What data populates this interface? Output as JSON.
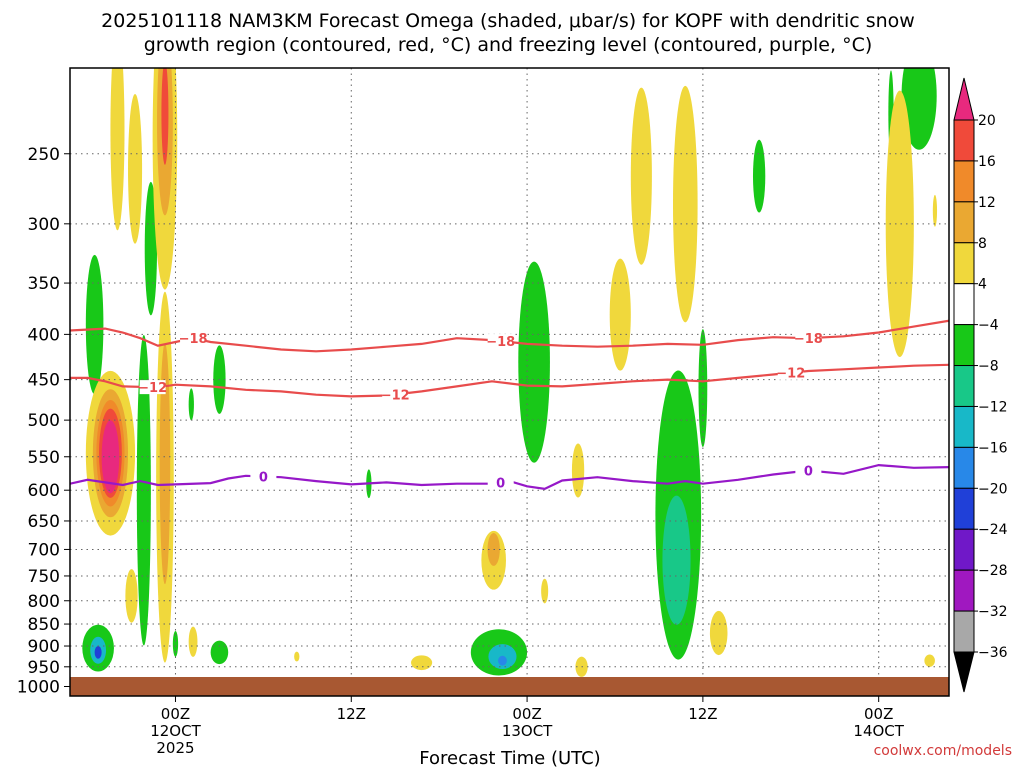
{
  "chart_data": {
    "type": "heatmap",
    "title_line1": "2025101118 NAM3KM Forecast Omega (shaded, μbar/s) for KOPF with dendritic snow",
    "title_line2": "growth region (contoured, red, °C) and freezing level (contoured, purple, °C)",
    "xlabel": "Forecast Time (UTC)",
    "credit": "coolwx.com/models",
    "y_axis": {
      "unit": "hPa",
      "range": [
        1025,
        200
      ],
      "ticks": [
        250,
        300,
        350,
        400,
        450,
        500,
        550,
        600,
        650,
        700,
        750,
        800,
        850,
        900,
        950,
        1000
      ]
    },
    "x_axis": {
      "unit": "forecast hour",
      "range": [
        -6,
        44
      ],
      "ticks": [
        {
          "hour": 0,
          "label": "00Z",
          "sub": "12OCT",
          "sub2": "2025"
        },
        {
          "hour": 10,
          "label": "12Z",
          "sub": "",
          "sub2": ""
        },
        {
          "hour": 20,
          "label": "00Z",
          "sub": "13OCT",
          "sub2": ""
        },
        {
          "hour": 30,
          "label": "12Z",
          "sub": "",
          "sub2": ""
        },
        {
          "hour": 40,
          "label": "00Z",
          "sub": "14OCT",
          "sub2": ""
        }
      ]
    },
    "colorbar": {
      "levels": [
        "20",
        "16",
        "12",
        "8",
        "4",
        "−4",
        "−8",
        "−12",
        "−16",
        "−20",
        "−24",
        "−28",
        "−32",
        "−36"
      ],
      "colors": [
        "#e8297e",
        "#f04a3a",
        "#f08a2a",
        "#eaa832",
        "#f0d83c",
        "#ffffff",
        "#18c818",
        "#18c888",
        "#18b8c8",
        "#2888e8",
        "#2040d8",
        "#7018c8",
        "#a018c0",
        "#a8a8a8"
      ]
    },
    "contours": [
      {
        "name": "dgz-minus18",
        "label": "−18",
        "color": "#e84c4c",
        "points": [
          [
            -6,
            396
          ],
          [
            -4,
            394
          ],
          [
            -3,
            398
          ],
          [
            -2,
            404
          ],
          [
            -1,
            412
          ],
          [
            0,
            408
          ],
          [
            1,
            404
          ],
          [
            2,
            408
          ],
          [
            4,
            412
          ],
          [
            6,
            416
          ],
          [
            8,
            418
          ],
          [
            10,
            416
          ],
          [
            12,
            413
          ],
          [
            14,
            410
          ],
          [
            16,
            404
          ],
          [
            18,
            406
          ],
          [
            20,
            410
          ],
          [
            22,
            412
          ],
          [
            24,
            413
          ],
          [
            26,
            412
          ],
          [
            28,
            410
          ],
          [
            30,
            411
          ],
          [
            32,
            406
          ],
          [
            34,
            403
          ],
          [
            36,
            404
          ],
          [
            38,
            402
          ],
          [
            40,
            398
          ],
          [
            42,
            392
          ],
          [
            44,
            386
          ]
        ],
        "label_positions": [
          1,
          18.5,
          36
        ]
      },
      {
        "name": "dgz-minus12",
        "label": "−12",
        "color": "#e84c4c",
        "points": [
          [
            -6,
            448
          ],
          [
            -5,
            448
          ],
          [
            -4,
            452
          ],
          [
            -3,
            458
          ],
          [
            -1,
            459
          ],
          [
            0,
            456
          ],
          [
            2,
            458
          ],
          [
            4,
            462
          ],
          [
            6,
            464
          ],
          [
            8,
            468
          ],
          [
            10,
            470
          ],
          [
            12,
            469
          ],
          [
            14,
            464
          ],
          [
            16,
            458
          ],
          [
            18,
            452
          ],
          [
            20,
            457
          ],
          [
            22,
            458
          ],
          [
            24,
            455
          ],
          [
            26,
            452
          ],
          [
            28,
            450
          ],
          [
            30,
            452
          ],
          [
            32,
            448
          ],
          [
            34,
            444
          ],
          [
            36,
            440
          ],
          [
            38,
            438
          ],
          [
            40,
            436
          ],
          [
            42,
            434
          ],
          [
            44,
            433
          ]
        ],
        "label_positions": [
          -1.3,
          12.5,
          35
        ]
      },
      {
        "name": "freezing-level",
        "label": "0",
        "color": "#9618c8",
        "points": [
          [
            -6,
            590
          ],
          [
            -5,
            584
          ],
          [
            -4,
            588
          ],
          [
            -3,
            592
          ],
          [
            -2,
            586
          ],
          [
            -1,
            592
          ],
          [
            0,
            591
          ],
          [
            2,
            589
          ],
          [
            3,
            582
          ],
          [
            4,
            578
          ],
          [
            6,
            580
          ],
          [
            8,
            586
          ],
          [
            10,
            591
          ],
          [
            12,
            588
          ],
          [
            14,
            592
          ],
          [
            16,
            590
          ],
          [
            18,
            590
          ],
          [
            19,
            586
          ],
          [
            20,
            594
          ],
          [
            21,
            598
          ],
          [
            22,
            585
          ],
          [
            24,
            580
          ],
          [
            26,
            586
          ],
          [
            28,
            590
          ],
          [
            29,
            586
          ],
          [
            30,
            590
          ],
          [
            32,
            584
          ],
          [
            34,
            576
          ],
          [
            36,
            570
          ],
          [
            38,
            575
          ],
          [
            40,
            562
          ],
          [
            42,
            566
          ],
          [
            44,
            565
          ]
        ],
        "label_positions": [
          5,
          18.5,
          36
        ]
      }
    ],
    "omega_features": [
      {
        "name": "neg-column-early",
        "color": "#18c818",
        "x": -4.6,
        "p": 390,
        "rx": 0.5,
        "rp": 70
      },
      {
        "name": "neg-upper-early",
        "color": "#18c818",
        "x": -1.4,
        "p": 320,
        "rx": 0.35,
        "rp": 55
      },
      {
        "name": "neg-lower-early",
        "color": "#18c818",
        "x": -1.8,
        "p": 600,
        "rx": 0.4,
        "rp": 230
      },
      {
        "name": "neg-sfc-early",
        "color": "#18c818",
        "x": -4.4,
        "p": 905,
        "rx": 0.9,
        "rp": 55
      },
      {
        "name": "neg-sfc-early-core",
        "color": "#18b8c8",
        "x": -4.4,
        "p": 910,
        "rx": 0.45,
        "rp": 32
      },
      {
        "name": "neg-sfc-early-max",
        "color": "#2040d8",
        "x": -4.4,
        "p": 915,
        "rx": 0.2,
        "rp": 15
      },
      {
        "name": "neg-bl-late-early",
        "color": "#18c818",
        "x": 2.5,
        "p": 915,
        "rx": 0.5,
        "rp": 28
      },
      {
        "name": "neg-mid-a",
        "color": "#18c818",
        "x": 2.5,
        "p": 450,
        "rx": 0.35,
        "rp": 40
      },
      {
        "name": "neg-mid-b",
        "color": "#18c818",
        "x": 0.9,
        "p": 480,
        "rx": 0.15,
        "rp": 20
      },
      {
        "name": "neg-spot-a",
        "color": "#18c818",
        "x": 11,
        "p": 590,
        "rx": 0.15,
        "rp": 22
      },
      {
        "name": "neg-spot-b",
        "color": "#18c818",
        "x": 0,
        "p": 895,
        "rx": 0.15,
        "rp": 30
      },
      {
        "name": "neg-col-day2",
        "color": "#18c818",
        "x": 20.4,
        "p": 430,
        "rx": 0.9,
        "rp": 110
      },
      {
        "name": "neg-sfc-day2",
        "color": "#18c818",
        "x": 18.4,
        "p": 915,
        "rx": 1.6,
        "rp": 55
      },
      {
        "name": "neg-sfc-day2-core",
        "color": "#18b8c8",
        "x": 18.6,
        "p": 925,
        "rx": 0.8,
        "rp": 30
      },
      {
        "name": "neg-sfc-day2-max",
        "color": "#2888e8",
        "x": 18.6,
        "p": 935,
        "rx": 0.25,
        "rp": 12
      },
      {
        "name": "neg-col-12z",
        "color": "#18c818",
        "x": 28.6,
        "p": 640,
        "rx": 1.3,
        "rp": 230
      },
      {
        "name": "neg-col-12z-core",
        "color": "#18c888",
        "x": 28.5,
        "p": 720,
        "rx": 0.8,
        "rp": 120
      },
      {
        "name": "neg-upper-12z",
        "color": "#18c818",
        "x": 30,
        "p": 460,
        "rx": 0.25,
        "rp": 70
      },
      {
        "name": "neg-upper-right-a",
        "color": "#18c818",
        "x": 33.2,
        "p": 265,
        "rx": 0.35,
        "rp": 25
      },
      {
        "name": "neg-corner",
        "color": "#18c818",
        "x": 42.3,
        "p": 215,
        "rx": 1.0,
        "rp": 30
      },
      {
        "name": "neg-corner-b",
        "color": "#18c818",
        "x": 40.7,
        "p": 225,
        "rx": 0.15,
        "rp": 25
      },
      {
        "name": "pos-upper-a",
        "color": "#f0d83c",
        "x": -3.3,
        "p": 235,
        "rx": 0.4,
        "rp": 60
      },
      {
        "name": "pos-upper-b",
        "color": "#f0d83c",
        "x": -2.3,
        "p": 260,
        "rx": 0.4,
        "rp": 50
      },
      {
        "name": "pos-upper-col",
        "color": "#f0d83c",
        "x": -0.6,
        "p": 240,
        "rx": 0.7,
        "rp": 90
      },
      {
        "name": "pos-upper-col-mid",
        "color": "#eaa832",
        "x": -0.6,
        "p": 230,
        "rx": 0.45,
        "rp": 55
      },
      {
        "name": "pos-upper-col-max",
        "color": "#f04a3a",
        "x": -0.6,
        "p": 225,
        "rx": 0.2,
        "rp": 30
      },
      {
        "name": "pos-col-early",
        "color": "#f0d83c",
        "x": -0.6,
        "p": 580,
        "rx": 0.5,
        "rp": 260
      },
      {
        "name": "pos-col-early-mid",
        "color": "#eaa832",
        "x": -0.6,
        "p": 560,
        "rx": 0.3,
        "rp": 170
      },
      {
        "name": "pos-main",
        "color": "#f0d83c",
        "x": -3.7,
        "p": 545,
        "rx": 1.4,
        "rp": 115
      },
      {
        "name": "pos-main-mid",
        "color": "#eaa832",
        "x": -3.7,
        "p": 545,
        "rx": 1.0,
        "rp": 90
      },
      {
        "name": "pos-main-orange",
        "color": "#f08a2a",
        "x": -3.7,
        "p": 545,
        "rx": 0.8,
        "rp": 75
      },
      {
        "name": "pos-main-red",
        "color": "#f04a3a",
        "x": -3.7,
        "p": 545,
        "rx": 0.65,
        "rp": 63
      },
      {
        "name": "pos-main-max",
        "color": "#e8297e",
        "x": -3.7,
        "p": 550,
        "rx": 0.5,
        "rp": 52
      },
      {
        "name": "pos-low-early",
        "color": "#f0d83c",
        "x": -2.5,
        "p": 790,
        "rx": 0.35,
        "rp": 55
      },
      {
        "name": "pos-low-early-b",
        "color": "#f0d83c",
        "x": 1.0,
        "p": 890,
        "rx": 0.25,
        "rp": 35
      },
      {
        "name": "pos-low-early-c",
        "color": "#f0d83c",
        "x": 6.9,
        "p": 925,
        "rx": 0.15,
        "rp": 12
      },
      {
        "name": "pos-mid-12z",
        "color": "#f0d83c",
        "x": 14,
        "p": 940,
        "rx": 0.6,
        "rp": 18
      },
      {
        "name": "pos-low-day2",
        "color": "#f0d83c",
        "x": 18.1,
        "p": 720,
        "rx": 0.7,
        "rp": 55
      },
      {
        "name": "pos-low-day2-mid",
        "color": "#eaa832",
        "x": 18.1,
        "p": 700,
        "rx": 0.35,
        "rp": 30
      },
      {
        "name": "pos-day2-b",
        "color": "#f0d83c",
        "x": 22.9,
        "p": 570,
        "rx": 0.35,
        "rp": 40
      },
      {
        "name": "pos-day2-c",
        "color": "#f0d83c",
        "x": 23.1,
        "p": 950,
        "rx": 0.35,
        "rp": 25
      },
      {
        "name": "pos-day2-d",
        "color": "#f0d83c",
        "x": 21,
        "p": 780,
        "rx": 0.2,
        "rp": 25
      },
      {
        "name": "pos-day2-e",
        "color": "#f0d83c",
        "x": 25.3,
        "p": 380,
        "rx": 0.6,
        "rp": 55
      },
      {
        "name": "pos-day2-f",
        "color": "#f0d83c",
        "x": 26.5,
        "p": 265,
        "rx": 0.6,
        "rp": 60
      },
      {
        "name": "pos-day2-g",
        "color": "#f0d83c",
        "x": 29.0,
        "p": 285,
        "rx": 0.7,
        "rp": 85
      },
      {
        "name": "pos-day2-h",
        "color": "#f0d83c",
        "x": 30.9,
        "p": 870,
        "rx": 0.5,
        "rp": 50
      },
      {
        "name": "pos-day3-a",
        "color": "#f0d83c",
        "x": 41.2,
        "p": 300,
        "rx": 0.8,
        "rp": 100
      },
      {
        "name": "pos-day3-b",
        "color": "#f0d83c",
        "x": 42.9,
        "p": 935,
        "rx": 0.3,
        "rp": 15
      },
      {
        "name": "pos-day3-c",
        "color": "#f0d83c",
        "x": 43.2,
        "p": 290,
        "rx": 0.12,
        "rp": 12
      }
    ],
    "ground_color": "#a85832"
  }
}
